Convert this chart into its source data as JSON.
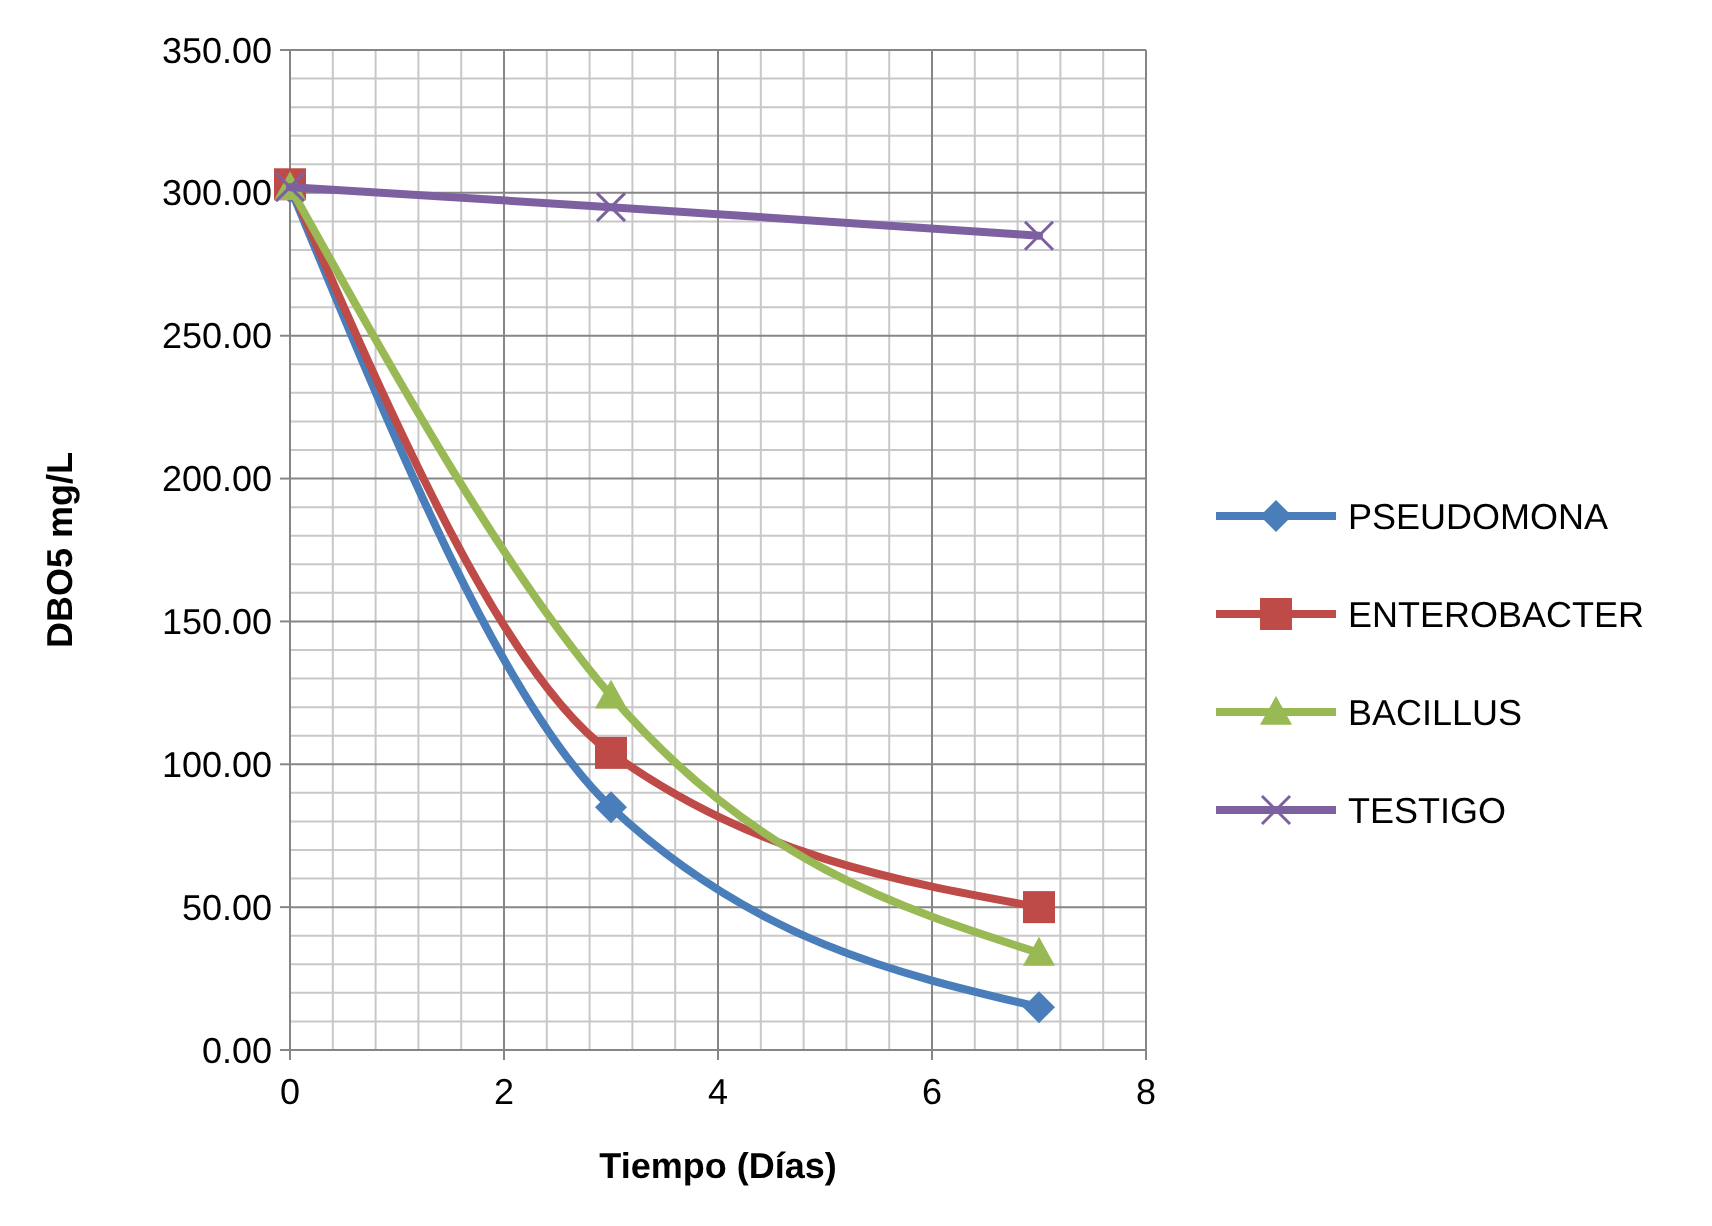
{
  "chart_data": {
    "type": "line",
    "xlabel": "Tiempo (Días)",
    "ylabel": "DBO5 mg/L",
    "xlim": [
      0,
      8
    ],
    "xticks": [
      0,
      2,
      4,
      6,
      8
    ],
    "ylim": [
      0,
      350
    ],
    "yticks": [
      {
        "value": 0,
        "label": "0.00"
      },
      {
        "value": 50,
        "label": "50.00"
      },
      {
        "value": 100,
        "label": "100.00"
      },
      {
        "value": 150,
        "label": "150.00"
      },
      {
        "value": 200,
        "label": "200.00"
      },
      {
        "value": 250,
        "label": "250.00"
      },
      {
        "value": 300,
        "label": "300.00"
      },
      {
        "value": 350,
        "label": "350.00"
      }
    ],
    "grid": true,
    "legend": "right",
    "series": [
      {
        "name": "PSEUDOMONA",
        "color": "#4a7ebb",
        "marker": "diamond",
        "x": [
          0,
          3,
          7
        ],
        "values": [
          302,
          85,
          15
        ]
      },
      {
        "name": "ENTEROBACTER",
        "color": "#be4b48",
        "marker": "square",
        "x": [
          0,
          3,
          7
        ],
        "values": [
          303,
          104,
          50
        ]
      },
      {
        "name": "BACILLUS",
        "color": "#98b954",
        "marker": "triangle",
        "x": [
          0,
          3,
          7
        ],
        "values": [
          302,
          124,
          34
        ]
      },
      {
        "name": "TESTIGO",
        "color": "#7d60a0",
        "marker": "cross",
        "x": [
          0,
          3,
          7
        ],
        "values": [
          302,
          295,
          285
        ]
      }
    ]
  }
}
